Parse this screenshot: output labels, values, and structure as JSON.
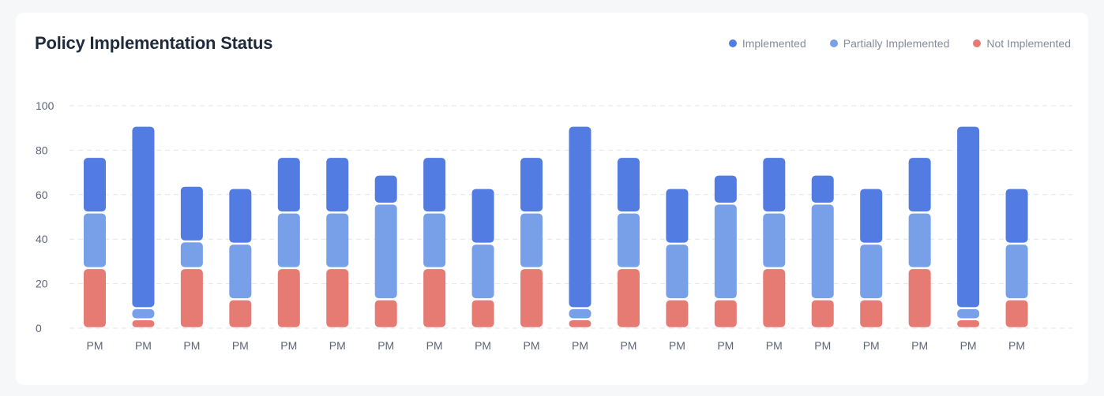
{
  "title": "Policy Implementation Status",
  "colors": {
    "implemented": "#537ce3",
    "partially_implemented": "#77a0e9",
    "not_implemented": "#e67b74",
    "grid": "#e3e6eb",
    "tick_text": "#5d6575"
  },
  "legend": [
    {
      "label": "Implemented",
      "color": "#537ce3"
    },
    {
      "label": "Partially Implemented",
      "color": "#77a0e9"
    },
    {
      "label": "Not Implemented",
      "color": "#e67b74"
    }
  ],
  "chart_data": {
    "type": "bar",
    "stacked": true,
    "title": "Policy Implementation Status",
    "xlabel": "",
    "ylabel": "",
    "ylim": [
      0,
      100
    ],
    "yticks": [
      0,
      20,
      40,
      60,
      80,
      100
    ],
    "grid": true,
    "legend_position": "top-right",
    "categories": [
      "PM",
      "PM",
      "PM",
      "PM",
      "PM",
      "PM",
      "PM",
      "PM",
      "PM",
      "PM",
      "PM",
      "PM",
      "PM",
      "PM",
      "PM",
      "PM",
      "PM",
      "PM",
      "PM",
      "PM"
    ],
    "series": [
      {
        "name": "Not Implemented",
        "color": "#e67b74",
        "values": [
          27,
          4,
          27,
          13,
          27,
          27,
          13,
          27,
          13,
          27,
          4,
          27,
          13,
          13,
          27,
          13,
          13,
          27,
          4,
          13
        ]
      },
      {
        "name": "Partially Implemented",
        "color": "#77a0e9",
        "values": [
          25,
          5,
          12,
          25,
          25,
          25,
          43,
          25,
          25,
          25,
          5,
          25,
          25,
          43,
          25,
          43,
          25,
          25,
          5,
          25
        ]
      },
      {
        "name": "Implemented",
        "color": "#537ce3",
        "values": [
          25,
          82,
          25,
          25,
          25,
          25,
          13,
          25,
          25,
          25,
          82,
          25,
          25,
          13,
          25,
          13,
          25,
          25,
          82,
          25
        ]
      }
    ]
  }
}
